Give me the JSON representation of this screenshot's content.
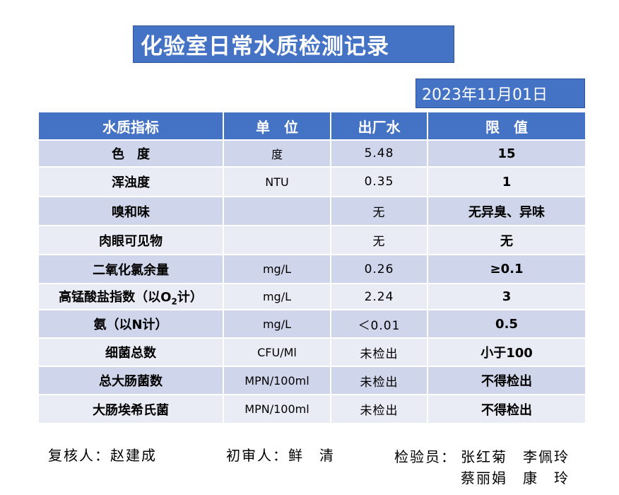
{
  "title": "化验室日常水质检测记录",
  "date": "2023年11月01日",
  "table": {
    "headers": [
      "水质指标",
      "单　位",
      "出厂水",
      "限　值"
    ],
    "rows": [
      {
        "name": "色　度",
        "name_sub": "",
        "name_tail": "",
        "unit": "度",
        "outlet": "5.48",
        "limit": "15"
      },
      {
        "name": "浑浊度",
        "name_sub": "",
        "name_tail": "",
        "unit": "NTU",
        "outlet": "0.35",
        "limit": "1"
      },
      {
        "name": "嗅和味",
        "name_sub": "",
        "name_tail": "",
        "unit": "",
        "outlet": "无",
        "limit": "无异臭、异味"
      },
      {
        "name": "肉眼可见物",
        "name_sub": "",
        "name_tail": "",
        "unit": "",
        "outlet": "无",
        "limit": "无"
      },
      {
        "name": "二氧化氯余量",
        "name_sub": "",
        "name_tail": "",
        "unit": "mg/L",
        "outlet": "0.26",
        "limit": "≥0.1"
      },
      {
        "name": "高锰酸盐指数（以O",
        "name_sub": "2",
        "name_tail": "计）",
        "unit": "mg/L",
        "outlet": "2.24",
        "limit": "3"
      },
      {
        "name": "氨（以N计）",
        "name_sub": "",
        "name_tail": "",
        "unit": "mg/L",
        "outlet": "＜0.01",
        "limit": "0.5"
      },
      {
        "name": "细菌总数",
        "name_sub": "",
        "name_tail": "",
        "unit": "CFU/Ml",
        "outlet": "未检出",
        "limit": "小于100"
      },
      {
        "name": "总大肠菌数",
        "name_sub": "",
        "name_tail": "",
        "unit": "MPN/100ml",
        "outlet": "未检出",
        "limit": "不得检出"
      },
      {
        "name": "大肠埃希氏菌",
        "name_sub": "",
        "name_tail": "",
        "unit": "MPN/100ml",
        "outlet": "未检出",
        "limit": "不得检出"
      }
    ]
  },
  "signatures": {
    "reviewer": "复核人：赵建成",
    "first_reviewer": "初审人：鲜　清",
    "inspector_label": "检验员：",
    "inspector_line1": "张红菊　李佩玲",
    "inspector_line2": "蔡丽娟　康　玲"
  },
  "colors": {
    "header_blue": "#4472c4",
    "row_dark": "#cfd5ea",
    "row_light": "#e9ebf5"
  }
}
